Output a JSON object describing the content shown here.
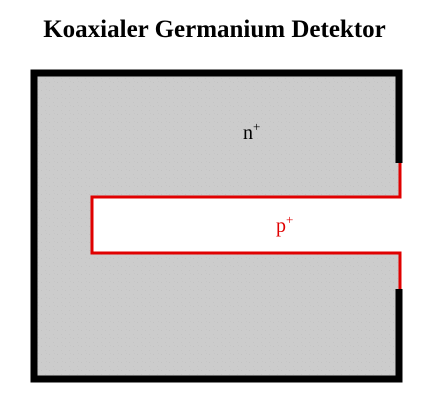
{
  "title": "Koaxialer Germanium Detektor",
  "labels": {
    "n_base": "n",
    "n_sup": "+",
    "p_base": "p",
    "p_sup": "+"
  },
  "colors": {
    "body_fill": "#cccccc",
    "outer_contact": "#000000",
    "inner_contact": "#e00000",
    "bore_fill": "#ffffff",
    "n_label": "#000000",
    "p_label": "#e00000"
  }
}
